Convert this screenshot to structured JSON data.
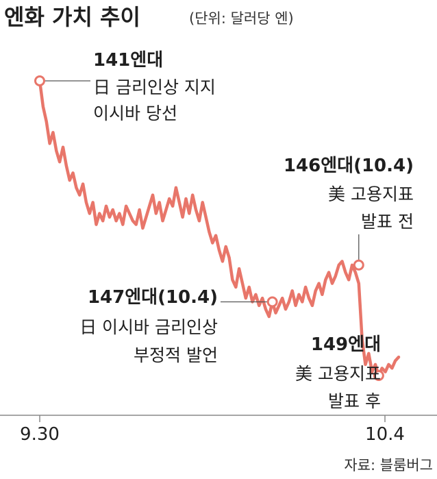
{
  "chart_data": {
    "type": "line",
    "title": "엔화 가치 추이",
    "unit": "(단위: 달러당 엔)",
    "x_ticks": [
      "9.30",
      "10.4"
    ],
    "source": "자료: 블룸버그",
    "series": [
      {
        "color": "#e8766a",
        "values": [
          141.0,
          141.7,
          142.1,
          142.7,
          142.4,
          142.9,
          143.2,
          142.8,
          143.3,
          143.7,
          143.5,
          143.9,
          144.1,
          143.8,
          144.3,
          144.6,
          144.3,
          144.9,
          144.6,
          144.8,
          144.4,
          144.7,
          144.5,
          144.8,
          144.6,
          144.9,
          144.4,
          144.6,
          144.8,
          144.9,
          144.5,
          145.0,
          144.7,
          144.4,
          144.1,
          144.6,
          144.3,
          144.8,
          144.5,
          144.2,
          144.4,
          143.9,
          144.3,
          144.7,
          144.2,
          144.6,
          144.1,
          144.5,
          144.8,
          144.3,
          144.7,
          145.1,
          145.4,
          145.2,
          145.6,
          145.9,
          145.5,
          145.8,
          146.4,
          146.6,
          146.1,
          146.5,
          146.9,
          146.6,
          147.0,
          146.8,
          147.1,
          146.9,
          147.2,
          147.4,
          147.0,
          147.3,
          147.1,
          146.9,
          147.2,
          147.0,
          146.7,
          147.1,
          146.8,
          147.0,
          146.6,
          146.9,
          147.1,
          146.7,
          146.5,
          146.8,
          146.4,
          146.2,
          146.5,
          146.3,
          146.0,
          145.9,
          146.2,
          146.4,
          146.0,
          146.2,
          146.5,
          148.0,
          148.7,
          148.4,
          148.9,
          148.7,
          149.0,
          148.8,
          148.9,
          148.7,
          148.8,
          148.6,
          148.5
        ]
      }
    ],
    "annotations": [
      {
        "lines": [
          "141엔대",
          "日 금리인상 지지",
          "이시바 당선"
        ],
        "value": 141.0,
        "point_index": 0
      },
      {
        "lines": [
          "147엔대(10.4)",
          "日 이시바 금리인상",
          "부정적 발언"
        ],
        "value": 147.0,
        "point_index": 70
      },
      {
        "lines": [
          "146엔대(10.4)",
          "美 고용지표",
          "발표 전"
        ],
        "value": 146.0,
        "point_index": 96
      },
      {
        "lines": [
          "149엔대",
          "美 고용지표",
          "발표 후"
        ],
        "value": 149.0,
        "point_index": 102
      }
    ]
  }
}
